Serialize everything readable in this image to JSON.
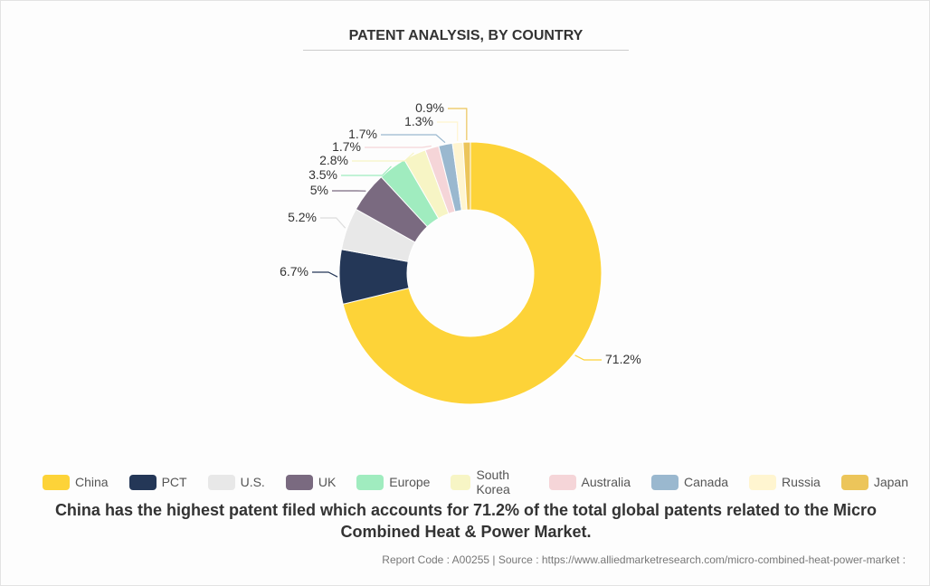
{
  "chart_data": {
    "type": "pie",
    "variant": "donut",
    "title": "PATENT ANALYSIS, BY COUNTRY",
    "categories": [
      "China",
      "PCT",
      "U.S.",
      "UK",
      "Europe",
      "South Korea",
      "Australia",
      "Canada",
      "Russia",
      "Japan"
    ],
    "values": [
      71.2,
      6.7,
      5.2,
      5,
      3.5,
      2.8,
      1.7,
      1.7,
      1.3,
      0.9
    ],
    "labels": [
      "71.2%",
      "6.7%",
      "5.2%",
      "5%",
      "3.5%",
      "2.8%",
      "1.7%",
      "1.7%",
      "1.3%",
      "0.9%"
    ],
    "colors": [
      "#fdd338",
      "#243757",
      "#e8e8e8",
      "#7a6a80",
      "#a0ecbf",
      "#f7f5c5",
      "#f5d5d8",
      "#9ab8cf",
      "#fff5d0",
      "#ecc55a"
    ],
    "legend_position": "bottom"
  },
  "caption": "China has the highest patent filed which accounts for 71.2% of the total global patents related to the Micro Combined Heat & Power Market.",
  "source": "Report Code : A00255  |  Source : https://www.alliedmarketresearch.com/micro-combined-heat-power-market :"
}
